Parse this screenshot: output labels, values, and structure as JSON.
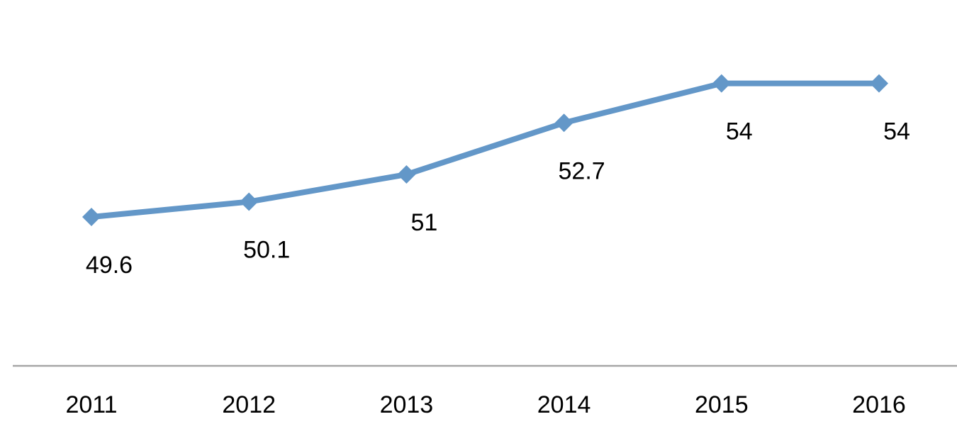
{
  "chart_data": {
    "type": "line",
    "title": "",
    "xlabel": "",
    "ylabel": "",
    "categories": [
      "2011",
      "2012",
      "2013",
      "2014",
      "2015",
      "2016"
    ],
    "series": [
      {
        "values": [
          49.6,
          50.1,
          51,
          52.7,
          54,
          54
        ],
        "data_labels": [
          "49.6",
          "50.1",
          "51",
          "52.7",
          "54",
          "54"
        ],
        "color": "#6397c8",
        "marker": "diamond"
      }
    ],
    "ylim": [
      45.3,
      55.3
    ],
    "grid": false,
    "legend": "none",
    "axis_color": "#a6a6a6",
    "data_label_position": "below"
  }
}
